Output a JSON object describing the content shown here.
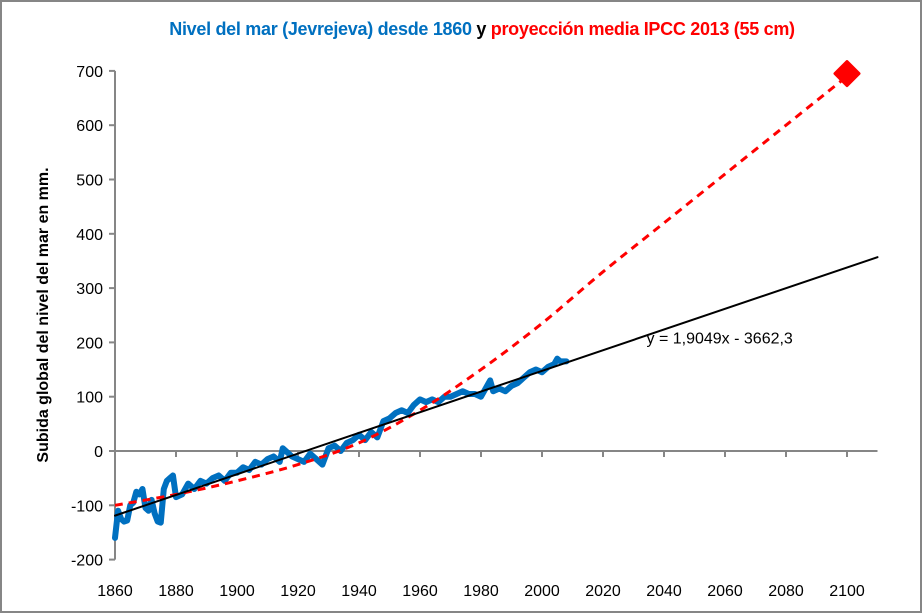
{
  "chart_data": {
    "type": "line",
    "title_parts": [
      {
        "text": "Nivel del mar (Jevrejeva) desde 1860",
        "color": "#0070c0"
      },
      {
        "text": " y ",
        "color": "#000000"
      },
      {
        "text": "proyección media IPCC 2013 (55 cm)",
        "color": "#ff0000"
      }
    ],
    "xlabel": "",
    "ylabel": "Subida global del nivel del mar en mm.",
    "xlim": [
      1860,
      2110
    ],
    "ylim": [
      -200,
      700
    ],
    "x_ticks": [
      1860,
      1880,
      1900,
      1920,
      1940,
      1960,
      1980,
      2000,
      2020,
      2040,
      2060,
      2080,
      2100
    ],
    "y_ticks": [
      -200,
      -100,
      0,
      100,
      200,
      300,
      400,
      500,
      600,
      700
    ],
    "x_tick_labels": [
      "1860",
      "1880",
      "1900",
      "1920",
      "1940",
      "1960",
      "1980",
      "2000",
      "2020",
      "2040",
      "2060",
      "2080",
      "2100"
    ],
    "y_tick_labels": [
      "-200",
      "-100",
      "0",
      "100",
      "200",
      "300",
      "400",
      "500",
      "600",
      "700"
    ],
    "grid": false,
    "legend": "none",
    "series": [
      {
        "name": "Nivel del mar (Jevrejeva)",
        "color": "#0070c0",
        "style": "solid-thick",
        "x": [
          1860,
          1861,
          1862,
          1863,
          1864,
          1865,
          1866,
          1867,
          1868,
          1869,
          1870,
          1871,
          1872,
          1873,
          1874,
          1875,
          1876,
          1877,
          1878,
          1879,
          1880,
          1882,
          1884,
          1886,
          1888,
          1890,
          1892,
          1894,
          1896,
          1898,
          1900,
          1902,
          1904,
          1906,
          1908,
          1910,
          1912,
          1914,
          1915,
          1916,
          1918,
          1920,
          1922,
          1924,
          1926,
          1928,
          1930,
          1932,
          1934,
          1936,
          1938,
          1940,
          1942,
          1944,
          1946,
          1948,
          1950,
          1952,
          1954,
          1956,
          1958,
          1960,
          1962,
          1964,
          1966,
          1968,
          1970,
          1972,
          1974,
          1976,
          1978,
          1980,
          1982,
          1983,
          1984,
          1986,
          1988,
          1990,
          1992,
          1994,
          1996,
          1998,
          2000,
          2002,
          2004,
          2005,
          2006,
          2008
        ],
        "values": [
          -160,
          -110,
          -125,
          -130,
          -128,
          -100,
          -95,
          -75,
          -80,
          -70,
          -105,
          -110,
          -90,
          -115,
          -130,
          -132,
          -70,
          -55,
          -50,
          -45,
          -85,
          -80,
          -60,
          -70,
          -55,
          -60,
          -50,
          -45,
          -55,
          -40,
          -40,
          -30,
          -35,
          -20,
          -25,
          -15,
          -10,
          -20,
          5,
          0,
          -10,
          -15,
          -20,
          -5,
          -15,
          -25,
          5,
          10,
          0,
          15,
          20,
          30,
          20,
          35,
          25,
          55,
          60,
          70,
          75,
          70,
          85,
          95,
          90,
          95,
          90,
          100,
          100,
          105,
          110,
          105,
          105,
          100,
          120,
          130,
          110,
          115,
          110,
          120,
          125,
          135,
          145,
          150,
          145,
          155,
          160,
          170,
          165,
          165
        ]
      },
      {
        "name": "proyección media IPCC 2013",
        "color": "#ff0000",
        "style": "dashed",
        "x": [
          1860,
          1880,
          1900,
          1920,
          1940,
          1960,
          1980,
          2000,
          2020,
          2040,
          2060,
          2080,
          2100
        ],
        "values": [
          -100,
          -80,
          -55,
          -25,
          15,
          75,
          150,
          235,
          330,
          420,
          510,
          600,
          690
        ]
      },
      {
        "name": "Tendencia lineal",
        "color": "#000000",
        "style": "solid-thin",
        "x": [
          1860,
          2110
        ],
        "values": [
          -119,
          357
        ]
      }
    ],
    "markers": [
      {
        "name": "IPCC 2100",
        "x": 2100,
        "y": 695,
        "shape": "diamond",
        "color": "#ff0000"
      }
    ],
    "annotations": [
      {
        "text": "y = 1,9049x - 3662,3",
        "x": 2030,
        "y": 205
      }
    ]
  }
}
